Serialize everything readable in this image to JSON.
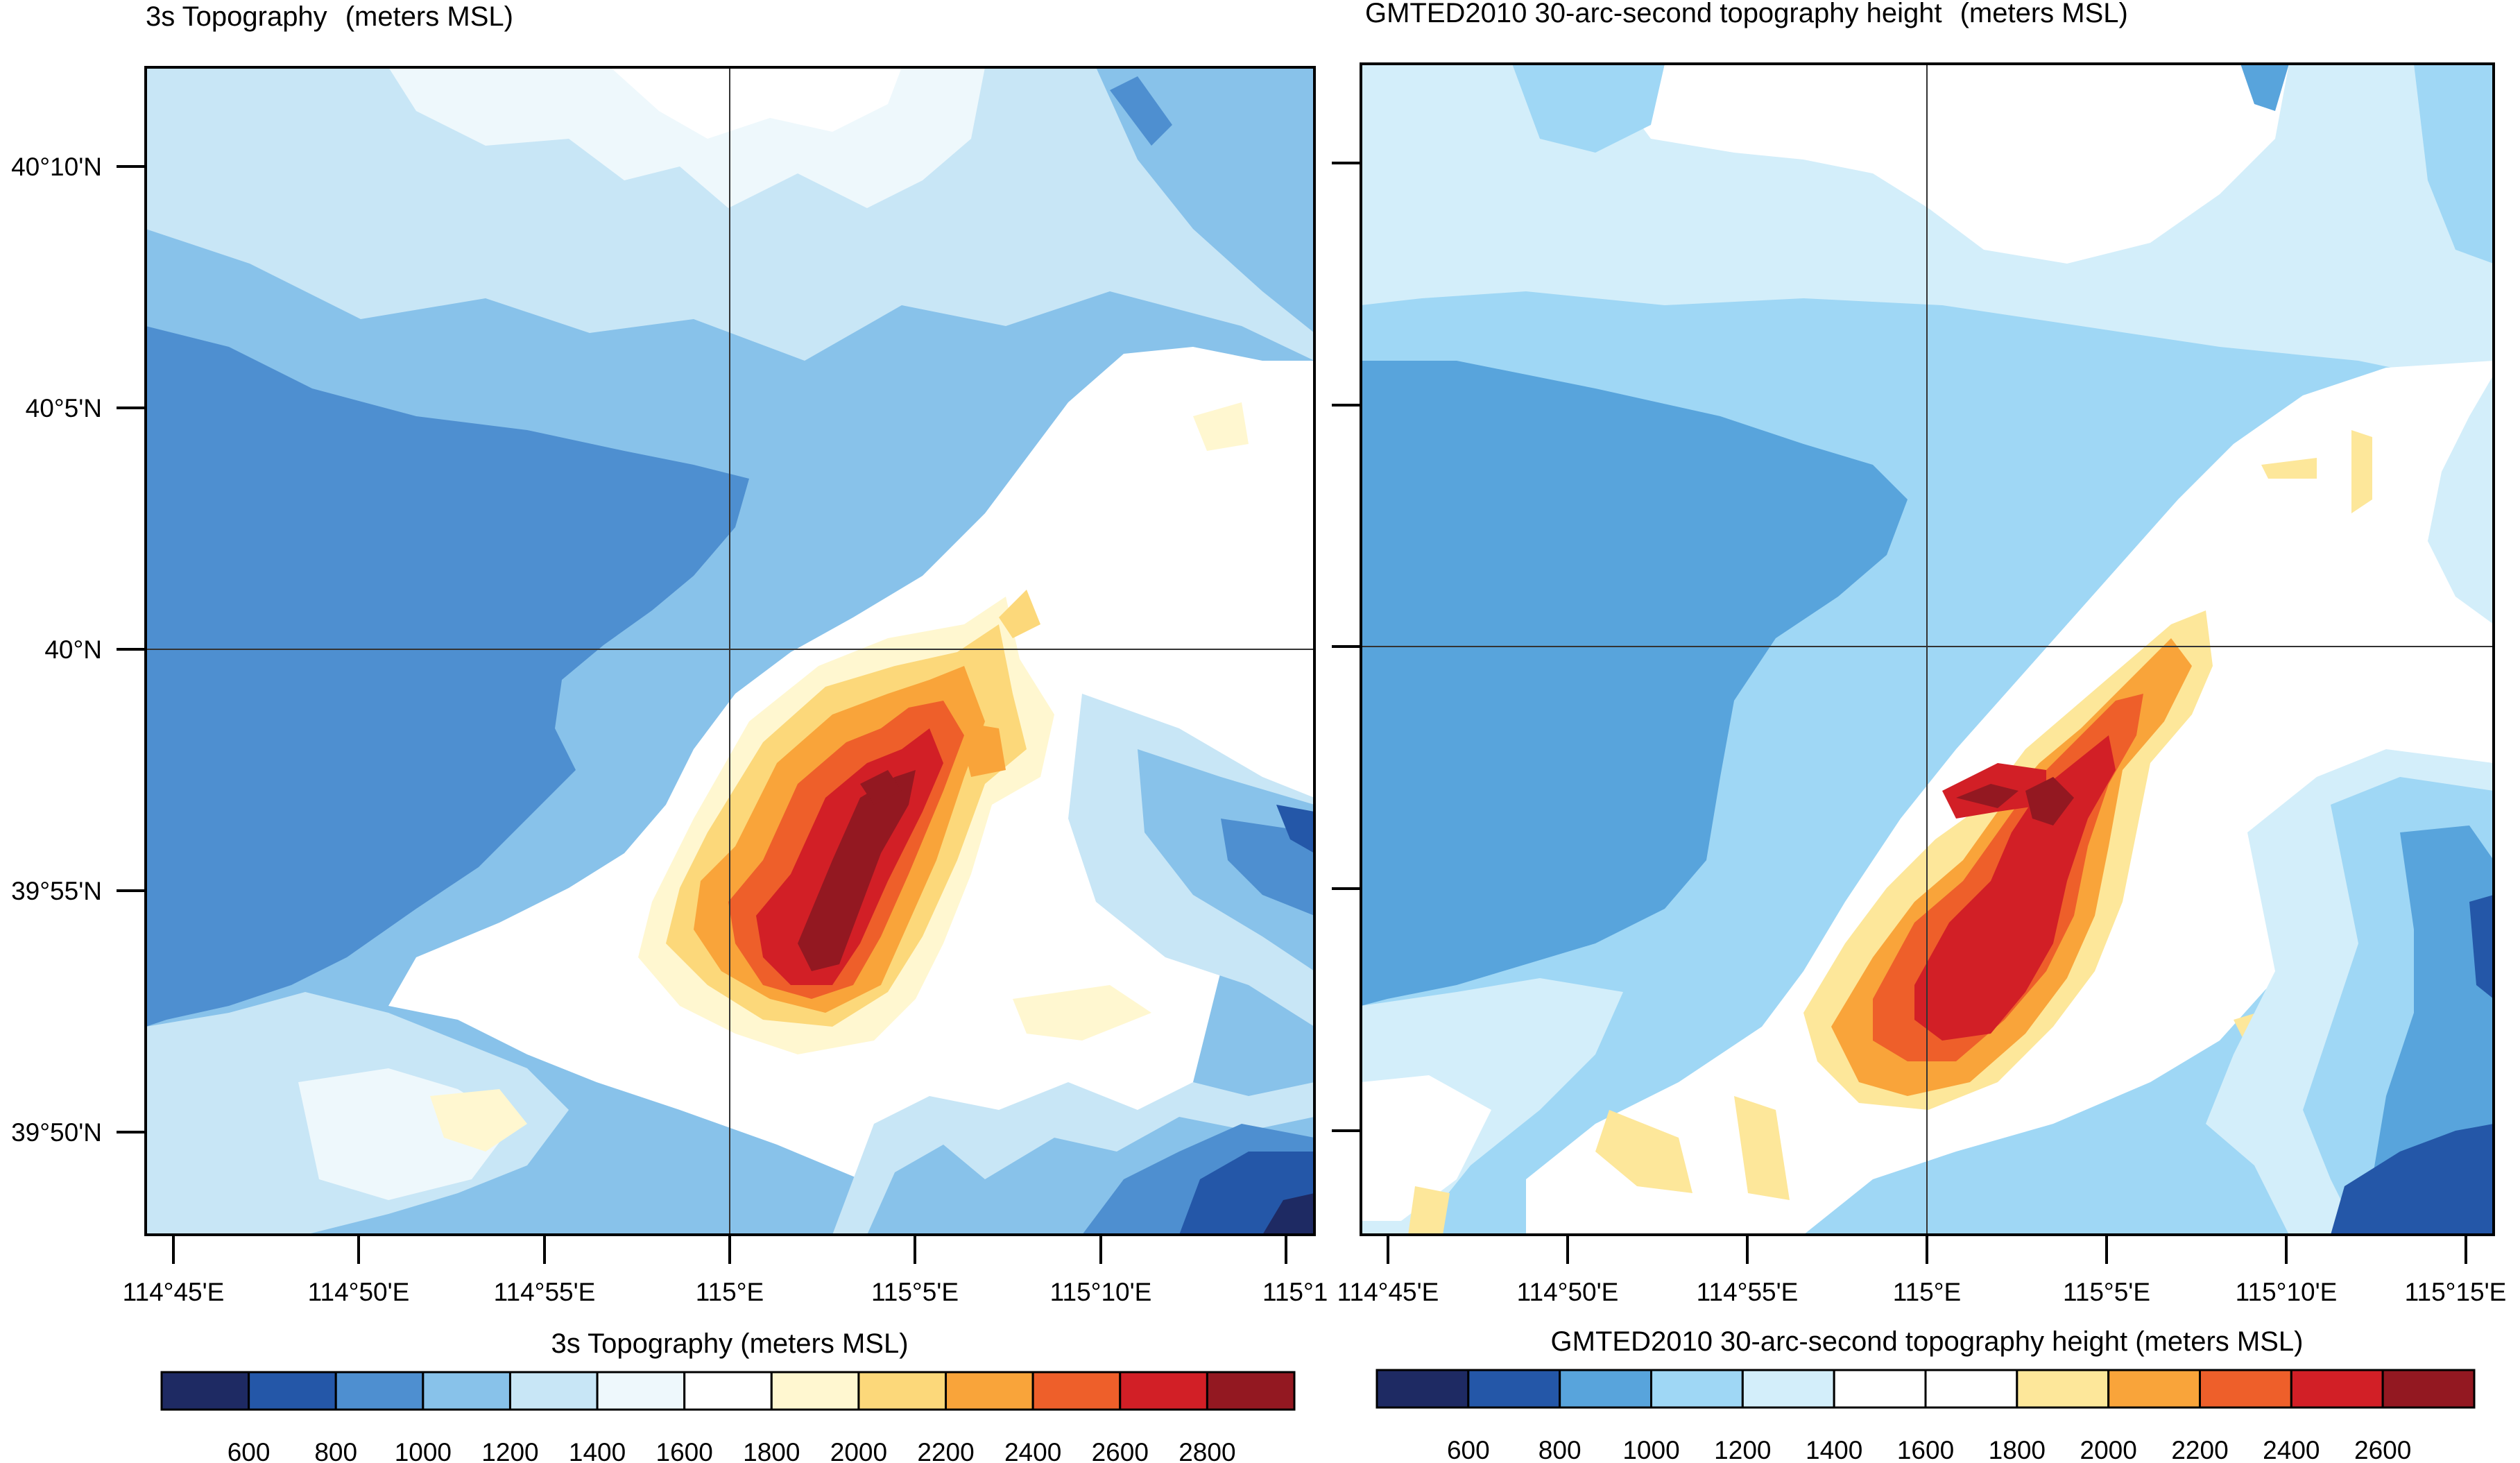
{
  "left_panel": {
    "title": "3s Topography",
    "units": "(meters MSL)",
    "lat_labels": [
      "40°10'N",
      "40°5'N",
      "40°N",
      "39°55'N",
      "39°50'N"
    ],
    "lon_labels": [
      "114°45'E",
      "114°50'E",
      "114°55'E",
      "115°E",
      "115°5'E",
      "115°10'E",
      "115°1"
    ],
    "colorbar_title": "3s Topography  (meters MSL)",
    "colorbar_labels": [
      "600",
      "800",
      "1000",
      "1200",
      "1400",
      "1600",
      "1800",
      "2000",
      "2200",
      "2400",
      "2600",
      "2800"
    ]
  },
  "right_panel": {
    "title": "GMTED2010 30-arc-second topography height",
    "units": "(meters MSL)",
    "lon_labels": [
      "114°45'E",
      "114°50'E",
      "114°55'E",
      "115°E",
      "115°5'E",
      "115°10'E",
      "115°15'E"
    ],
    "colorbar_title": "GMTED2010 30-arc-second topography height  (meters MSL)",
    "colorbar_labels": [
      "600",
      "800",
      "1000",
      "1200",
      "1400",
      "1600",
      "1800",
      "2000",
      "2200",
      "2400",
      "2600"
    ]
  },
  "palette_left": [
    "#1e2a63",
    "#2457a8",
    "#4e8fd0",
    "#88c2ea",
    "#c8e6f6",
    "#eef8fc",
    "#ffffff",
    "#fff7d0",
    "#fcd87a",
    "#f9a43a",
    "#ee5f2a",
    "#d21f26",
    "#931821"
  ],
  "palette_right": [
    "#1e2a63",
    "#2457a8",
    "#58a4dc",
    "#9fd7f5",
    "#d3eefa",
    "#ffffff",
    "#ffffff",
    "#fde79a",
    "#f9a43a",
    "#ee5f2a",
    "#d21f26",
    "#931821"
  ]
}
